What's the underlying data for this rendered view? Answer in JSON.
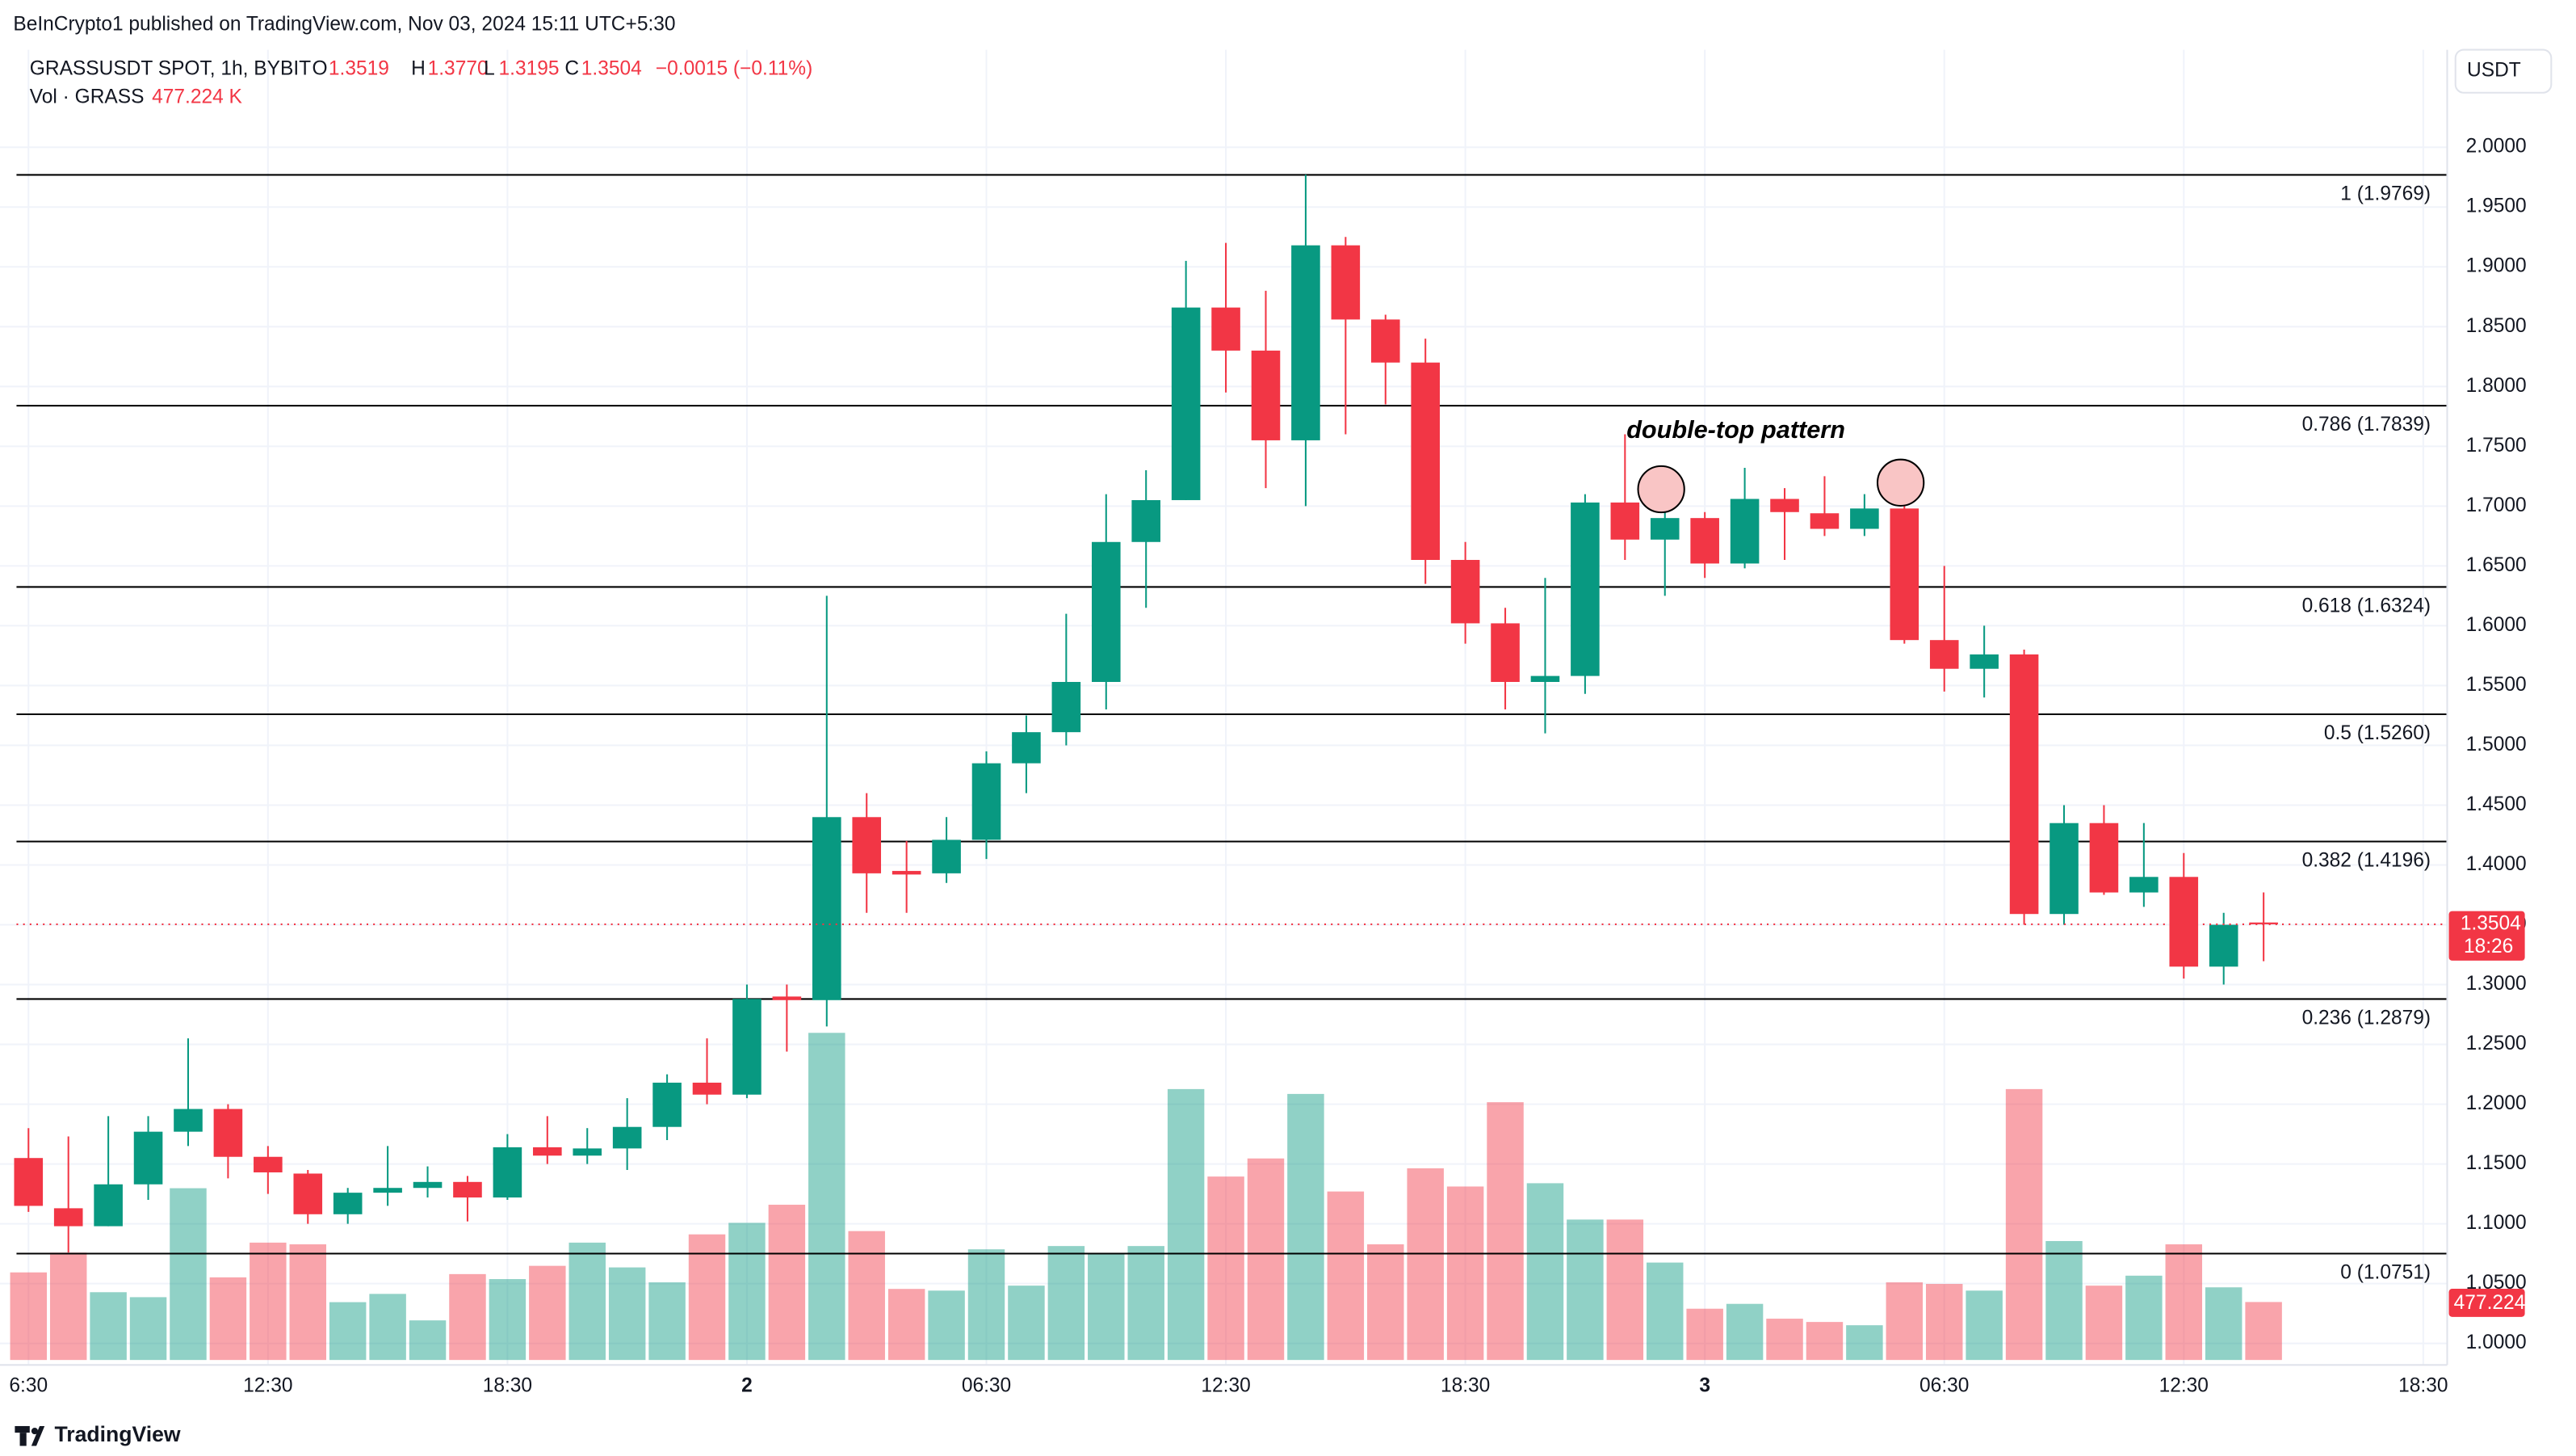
{
  "header": {
    "published": "BeInCrypto1 published on TradingView.com, Nov 03, 2024 15:11 UTC+5:30",
    "brand": "TradingView"
  },
  "chart_data": {
    "type": "candlestick",
    "currency": "USDT",
    "legend": {
      "symbol": "GRASSUSDT SPOT, 1h, BYBIT",
      "o_label": "O",
      "o": "1.3519",
      "h_label": "H",
      "h": "1.3770",
      "l_label": "L",
      "l": "1.3195",
      "c_label": "C",
      "c": "1.3504",
      "change": "−0.0015 (−0.11%)",
      "vol_label": "Vol · GRASS",
      "vol": "477.224 K"
    },
    "up_color": "#089981",
    "down_color": "#f23645",
    "x": [
      0,
      1,
      2,
      3,
      4,
      5,
      6,
      7,
      8,
      9,
      10,
      11,
      12,
      13,
      14,
      15,
      16,
      17,
      18,
      19,
      20,
      21,
      22,
      23,
      24,
      25,
      26,
      27,
      28,
      29,
      30,
      31,
      32,
      33,
      34,
      35,
      36,
      37,
      38,
      39,
      40,
      41,
      42,
      43,
      44,
      45,
      46,
      47,
      48,
      49,
      50,
      51,
      52,
      53,
      54,
      55,
      56
    ],
    "open": [
      1.155,
      1.113,
      1.098,
      1.133,
      1.177,
      1.196,
      1.156,
      1.142,
      1.108,
      1.126,
      1.13,
      1.135,
      1.122,
      1.164,
      1.157,
      1.163,
      1.181,
      1.218,
      1.208,
      1.29,
      1.287,
      1.44,
      1.395,
      1.393,
      1.421,
      1.485,
      1.511,
      1.553,
      1.67,
      1.705,
      1.866,
      1.83,
      1.755,
      1.918,
      1.856,
      1.82,
      1.655,
      1.602,
      1.553,
      1.558,
      1.703,
      1.672,
      1.69,
      1.652,
      1.706,
      1.694,
      1.681,
      1.698,
      1.588,
      1.564,
      1.576,
      1.359,
      1.435,
      1.377,
      1.39,
      1.315,
      1.3519
    ],
    "high": [
      1.18,
      1.173,
      1.19,
      1.19,
      1.255,
      1.2,
      1.165,
      1.145,
      1.13,
      1.165,
      1.148,
      1.14,
      1.175,
      1.19,
      1.18,
      1.205,
      1.225,
      1.255,
      1.3,
      1.3,
      1.625,
      1.46,
      1.42,
      1.44,
      1.495,
      1.525,
      1.61,
      1.71,
      1.73,
      1.905,
      1.92,
      1.88,
      1.977,
      1.925,
      1.86,
      1.84,
      1.67,
      1.615,
      1.64,
      1.71,
      1.76,
      1.72,
      1.695,
      1.732,
      1.715,
      1.725,
      1.71,
      1.71,
      1.65,
      1.6,
      1.58,
      1.45,
      1.45,
      1.435,
      1.41,
      1.36,
      1.377
    ],
    "low": [
      1.11,
      1.076,
      1.098,
      1.12,
      1.165,
      1.138,
      1.125,
      1.1,
      1.1,
      1.115,
      1.122,
      1.102,
      1.12,
      1.15,
      1.15,
      1.145,
      1.17,
      1.2,
      1.205,
      1.244,
      1.265,
      1.36,
      1.36,
      1.385,
      1.405,
      1.46,
      1.5,
      1.53,
      1.615,
      1.705,
      1.795,
      1.715,
      1.7,
      1.76,
      1.785,
      1.635,
      1.585,
      1.53,
      1.51,
      1.543,
      1.655,
      1.625,
      1.64,
      1.648,
      1.655,
      1.675,
      1.675,
      1.585,
      1.545,
      1.54,
      1.35,
      1.35,
      1.375,
      1.365,
      1.305,
      1.3,
      1.3195
    ],
    "close": [
      1.115,
      1.098,
      1.133,
      1.177,
      1.196,
      1.156,
      1.143,
      1.108,
      1.126,
      1.13,
      1.135,
      1.122,
      1.164,
      1.157,
      1.163,
      1.181,
      1.218,
      1.208,
      1.288,
      1.287,
      1.44,
      1.393,
      1.392,
      1.421,
      1.485,
      1.511,
      1.553,
      1.67,
      1.705,
      1.866,
      1.83,
      1.755,
      1.918,
      1.856,
      1.82,
      1.655,
      1.602,
      1.553,
      1.558,
      1.703,
      1.672,
      1.69,
      1.652,
      1.706,
      1.695,
      1.681,
      1.698,
      1.588,
      1.564,
      1.576,
      1.359,
      1.435,
      1.377,
      1.39,
      1.315,
      1.35,
      1.3504
    ],
    "volume": [
      721000,
      884000,
      558000,
      517000,
      1414000,
      680000,
      966000,
      952000,
      476000,
      544000,
      326000,
      707000,
      666000,
      775000,
      966000,
      762000,
      639000,
      1034000,
      1129000,
      1278000,
      2693000,
      1061000,
      585000,
      571000,
      911000,
      612000,
      938000,
      870000,
      938000,
      2230000,
      1510000,
      1659000,
      2190000,
      1387000,
      952000,
      1578000,
      1428000,
      2122000,
      1455000,
      1156000,
      1156000,
      802000,
      422000,
      462000,
      340000,
      313000,
      286000,
      639000,
      626000,
      571000,
      2230000,
      979000,
      612000,
      694000,
      952000,
      598000,
      477224
    ],
    "countdown": "18:26",
    "annotation": "double-top pattern",
    "fib_levels": [
      {
        "value": 1.9769,
        "label": "1 (1.9769)"
      },
      {
        "value": 1.7839,
        "label": "0.786 (1.7839)"
      },
      {
        "value": 1.6324,
        "label": "0.618 (1.6324)"
      },
      {
        "value": 1.526,
        "label": "0.5 (1.5260)"
      },
      {
        "value": 1.4196,
        "label": "0.382 (1.4196)"
      },
      {
        "value": 1.2879,
        "label": "0.236 (1.2879)"
      },
      {
        "value": 1.0751,
        "label": "0 (1.0751)"
      }
    ],
    "xlim": [
      -0.3,
      60.6
    ],
    "xticks": [
      {
        "value": 0,
        "label": "6:30"
      },
      {
        "value": 6,
        "label": "12:30"
      },
      {
        "value": 12,
        "label": "18:30"
      },
      {
        "value": 18,
        "label": "2"
      },
      {
        "value": 24,
        "label": "06:30"
      },
      {
        "value": 30,
        "label": "12:30"
      },
      {
        "value": 36,
        "label": "18:30"
      },
      {
        "value": 42,
        "label": "3"
      },
      {
        "value": 48,
        "label": "06:30"
      },
      {
        "value": 54,
        "label": "12:30"
      },
      {
        "value": 60,
        "label": "18:30"
      }
    ],
    "ylim": [
      0.9834,
      2.0815
    ],
    "yticks": [
      {
        "value": 1,
        "label": "1.0000"
      },
      {
        "value": 1.05,
        "label": "1.0500"
      },
      {
        "value": 1.1,
        "label": "1.1000"
      },
      {
        "value": 1.15,
        "label": "1.1500"
      },
      {
        "value": 1.2,
        "label": "1.2000"
      },
      {
        "value": 1.25,
        "label": "1.2500"
      },
      {
        "value": 1.3,
        "label": "1.3000"
      },
      {
        "value": 1.35,
        "label": "1.3500"
      },
      {
        "value": 1.4,
        "label": "1.4000"
      },
      {
        "value": 1.45,
        "label": "1.4500"
      },
      {
        "value": 1.5,
        "label": "1.5000"
      },
      {
        "value": 1.55,
        "label": "1.5500"
      },
      {
        "value": 1.6,
        "label": "1.6000"
      },
      {
        "value": 1.65,
        "label": "1.6500"
      },
      {
        "value": 1.7,
        "label": "1.7000"
      },
      {
        "value": 1.75,
        "label": "1.7500"
      },
      {
        "value": 1.8,
        "label": "1.8000"
      },
      {
        "value": 1.85,
        "label": "1.8500"
      },
      {
        "value": 1.9,
        "label": "1.9000"
      },
      {
        "value": 1.95,
        "label": "1.9500"
      },
      {
        "value": 2,
        "label": "2.0000"
      }
    ],
    "grid": true
  }
}
